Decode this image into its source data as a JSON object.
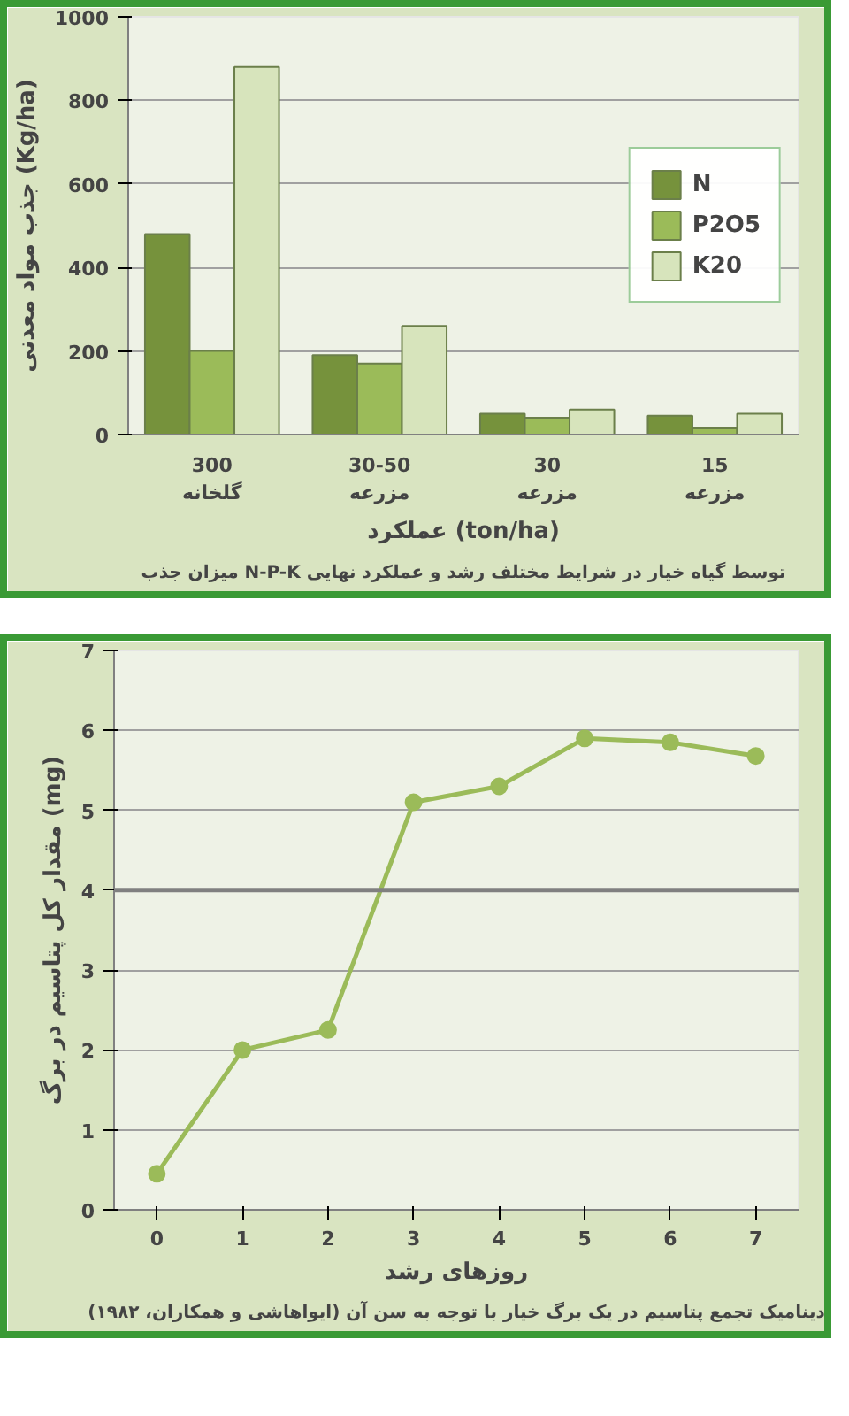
{
  "chart_data": [
    {
      "type": "bar",
      "title": "میزان جذب N-P-K توسط گیاه خیار در شرایط مختلف رشد و عملکرد نهایی",
      "xlabel": "عملکرد (ton/ha)",
      "ylabel": "جذب مواد معدنی (Kg/ha)",
      "categories": [
        "300\nگلخانه",
        "30-50\nمزرعه",
        "30\nمزرعه",
        "15\nمزرعه"
      ],
      "series": [
        {
          "name": "N",
          "color": "#76923c",
          "values": [
            480,
            190,
            50,
            45
          ]
        },
        {
          "name": "P2O5",
          "color": "#9bbb59",
          "values": [
            200,
            170,
            40,
            15
          ]
        },
        {
          "name": "K20",
          "color": "#d7e4bc",
          "values": [
            880,
            260,
            60,
            50
          ]
        }
      ],
      "ylim": [
        0,
        1000
      ],
      "yticks": [
        0,
        200,
        400,
        600,
        800,
        1000
      ],
      "grid": "y",
      "legend": "right"
    },
    {
      "type": "line",
      "title": "دینامیک تجمع پتاسیم در یک برگ خیار با توجه به سن آن (ایواهاشی و همکاران، ۱۹۸۲)",
      "xlabel": "روزهای رشد",
      "ylabel": "مقدار کل پتاسیم در برگ (mg)",
      "x": [
        0,
        1,
        2,
        3,
        4,
        5,
        6,
        7
      ],
      "series": [
        {
          "color": "#9bbb59",
          "values": [
            0.45,
            2.0,
            2.25,
            5.1,
            5.3,
            5.9,
            5.85,
            5.68
          ]
        }
      ],
      "xlim": [
        -0.5,
        7.5
      ],
      "xticks": [
        0,
        1,
        2,
        3,
        4,
        5,
        6,
        7
      ],
      "ylim": [
        0,
        7
      ],
      "yticks": [
        0,
        1,
        2,
        3,
        4,
        5,
        6,
        7
      ],
      "grid": "y",
      "marker": "circle",
      "line_style": "solid",
      "ref_lines": [
        {
          "axis": "y",
          "value": 4,
          "color": "#808080"
        }
      ]
    }
  ]
}
